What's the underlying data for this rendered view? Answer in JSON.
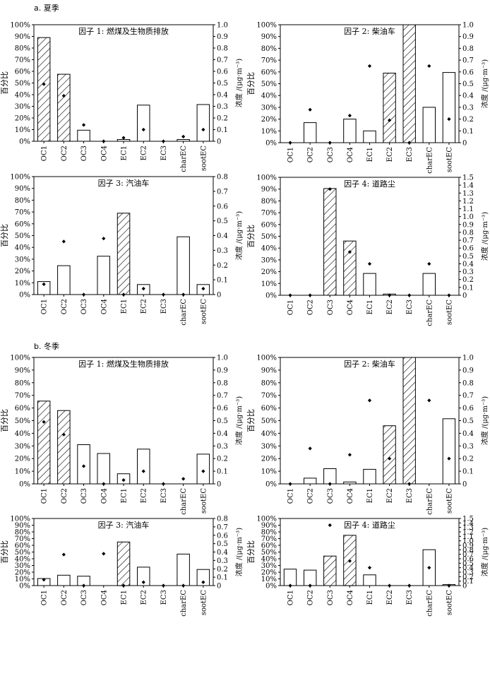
{
  "sections": [
    {
      "label": "a. 夏季"
    },
    {
      "label": "b. 冬季"
    }
  ],
  "axis_labels": {
    "left": "百分比",
    "right": "浓度 /(μg·m⁻³)"
  },
  "chart_data": [
    {
      "type": "bar",
      "title": "因子 1: 燃煤及生物质排放",
      "categories": [
        "OC1",
        "OC2",
        "OC3",
        "OC4",
        "EC1",
        "EC2",
        "EC3",
        "charEC",
        "sootEC"
      ],
      "series": [
        {
          "values": [
            89,
            57.5,
            9.5,
            0,
            1.5,
            31,
            0,
            1.5,
            31.5
          ]
        },
        {
          "values": [
            0.49,
            0.39,
            0.14,
            0,
            0.03,
            0.1,
            0,
            0.04,
            0.1
          ]
        }
      ],
      "ylim": [
        0,
        100
      ],
      "y2lim": [
        0,
        1.0
      ],
      "y2ticks": [
        "0",
        "0.1",
        "0.2",
        "0.3",
        "0.4",
        "0.5",
        "0.6",
        "0.7",
        "0.8",
        "0.9",
        "1.0"
      ]
    },
    {
      "type": "bar",
      "title": "因子 2: 柴油车",
      "categories": [
        "OC1",
        "OC2",
        "OC3",
        "OC4",
        "EC1",
        "EC2",
        "EC3",
        "charEC",
        "sootEC"
      ],
      "series": [
        {
          "values": [
            0,
            17,
            0,
            20,
            10,
            59,
            100,
            30,
            59.5
          ]
        },
        {
          "values": [
            0,
            0.28,
            0,
            0.23,
            0.65,
            0.19,
            0,
            0.65,
            0.2
          ]
        }
      ],
      "ylim": [
        0,
        100
      ],
      "y2lim": [
        0,
        1.0
      ],
      "y2ticks": [
        "0",
        "0.1",
        "0.2",
        "0.3",
        "0.4",
        "0.5",
        "0.6",
        "0.7",
        "0.8",
        "0.9",
        "1.0"
      ]
    },
    {
      "type": "bar",
      "title": "因子 3: 汽油车",
      "categories": [
        "OC1",
        "OC2",
        "OC3",
        "OC4",
        "EC1",
        "EC2",
        "EC3",
        "charEC",
        "sootEC"
      ],
      "series": [
        {
          "values": [
            11,
            24.5,
            0,
            32.5,
            69,
            8.5,
            0,
            49,
            8.5
          ]
        },
        {
          "values": [
            0.07,
            0.36,
            0,
            0.38,
            0,
            0.04,
            0,
            0,
            0.04
          ]
        }
      ],
      "ylim": [
        0,
        100
      ],
      "y2lim": [
        0,
        0.8
      ],
      "y2ticks": [
        "0",
        "0.1",
        "0.2",
        "0.3",
        "0.4",
        "0.5",
        "0.6",
        "0.7",
        "0.8"
      ]
    },
    {
      "type": "bar",
      "title": "因子 4: 道路尘",
      "categories": [
        "OC1",
        "OC2",
        "OC3",
        "OC4",
        "EC1",
        "EC2",
        "EC3",
        "charEC",
        "sootEC"
      ],
      "series": [
        {
          "values": [
            0,
            0,
            90.5,
            46,
            18.5,
            1,
            0,
            18.5,
            0
          ]
        },
        {
          "values": [
            0,
            0,
            1.35,
            0.55,
            0.4,
            0,
            0,
            0.4,
            0
          ]
        }
      ],
      "ylim": [
        0,
        100
      ],
      "y2lim": [
        0,
        1.5
      ],
      "y2ticks": [
        "0",
        "0.1",
        "0.2",
        "0.3",
        "0.4",
        "0.5",
        "0.6",
        "0.7",
        "0.8",
        "0.9",
        "1.0",
        "1.1",
        "1.2",
        "1.3",
        "1.4",
        "1.5"
      ]
    },
    {
      "type": "bar",
      "title": "因子 1: 燃煤及生物质排放",
      "categories": [
        "OC1",
        "OC2",
        "OC3",
        "OC4",
        "EC1",
        "EC2",
        "EC3",
        "charEC",
        "sootEC"
      ],
      "series": [
        {
          "values": [
            65.5,
            58,
            31,
            24,
            8,
            27.5,
            0,
            0,
            23.5
          ]
        },
        {
          "values": [
            0.49,
            0.39,
            0.14,
            0,
            0.03,
            0.1,
            0,
            0.04,
            0.1
          ]
        }
      ],
      "ylim": [
        0,
        100
      ],
      "y2lim": [
        0,
        1.0
      ],
      "y2ticks": [
        "0",
        "0.1",
        "0.2",
        "0.3",
        "0.4",
        "0.5",
        "0.6",
        "0.7",
        "0.8",
        "0.9",
        "1.0"
      ]
    },
    {
      "type": "bar",
      "title": "因子 2: 柴油车",
      "categories": [
        "OC1",
        "OC2",
        "OC3",
        "OC4",
        "EC1",
        "EC2",
        "EC3",
        "charEC",
        "sootEC"
      ],
      "series": [
        {
          "values": [
            0,
            4.5,
            12,
            1.5,
            11.5,
            46,
            100,
            0,
            51.5
          ]
        },
        {
          "values": [
            0,
            0.28,
            0,
            0.23,
            0.66,
            0.2,
            0,
            0.66,
            0.2
          ]
        }
      ],
      "ylim": [
        0,
        100
      ],
      "y2lim": [
        0,
        1.0
      ],
      "y2ticks": [
        "0",
        "0.1",
        "0.2",
        "0.3",
        "0.4",
        "0.5",
        "0.6",
        "0.7",
        "0.8",
        "0.9",
        "1.0"
      ]
    },
    {
      "type": "bar",
      "title": "因子 3: 汽油车",
      "categories": [
        "OC1",
        "OC2",
        "OC3",
        "OC4",
        "EC1",
        "EC2",
        "EC3",
        "charEC",
        "sootEC"
      ],
      "series": [
        {
          "values": [
            10.5,
            15.5,
            14,
            0,
            65,
            27.5,
            0,
            47,
            24
          ]
        },
        {
          "values": [
            0.07,
            0.37,
            0,
            0.38,
            0,
            0.04,
            0,
            0,
            0.04
          ]
        }
      ],
      "ylim": [
        0,
        100
      ],
      "y2lim": [
        0,
        0.8
      ],
      "y2ticks": [
        "0",
        "0.1",
        "0.2",
        "0.3",
        "0.4",
        "0.5",
        "0.6",
        "0.7",
        "0.8"
      ]
    },
    {
      "type": "bar",
      "title": "因子 4: 道路尘",
      "categories": [
        "OC1",
        "OC2",
        "OC3",
        "OC4",
        "EC1",
        "EC2",
        "EC3",
        "charEC",
        "sootEC"
      ],
      "series": [
        {
          "values": [
            24.5,
            23,
            44,
            75,
            16,
            0,
            0,
            53.5,
            1.5
          ]
        },
        {
          "values": [
            0,
            0,
            1.35,
            0.55,
            0.4,
            0,
            0,
            0.4,
            0
          ]
        }
      ],
      "ylim": [
        0,
        100
      ],
      "y2lim": [
        0,
        1.5
      ],
      "y2ticks": [
        "0",
        "0.1",
        "0.2",
        "0.3",
        "0.4",
        "0.5",
        "0.6",
        "0.7",
        "0.8",
        "0.9",
        "1.0",
        "1.1",
        "1.2",
        "1.3",
        "1.4",
        "1.5"
      ]
    }
  ]
}
